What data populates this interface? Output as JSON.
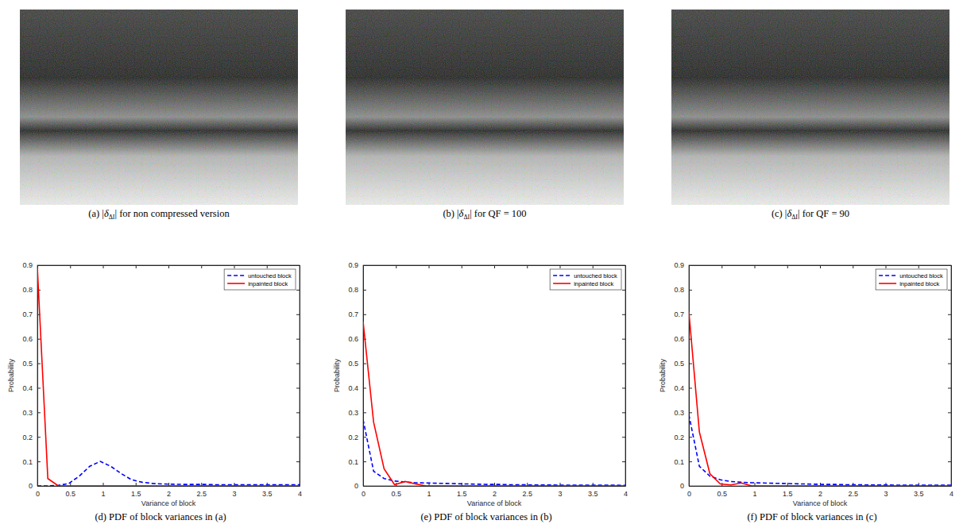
{
  "images": [
    {
      "caption_parts": [
        "(a) |",
        "δ",
        "ΔI",
        "| for non compressed version"
      ]
    },
    {
      "caption_parts": [
        "(b) |",
        "δ",
        "ΔI",
        "| for QF = 100"
      ]
    },
    {
      "caption_parts": [
        "(c) |",
        "δ",
        "ΔI",
        "| for QF = 90"
      ]
    }
  ],
  "chart_data": [
    {
      "type": "line",
      "caption": "(d) PDF of block variances in (a)",
      "x_label": "Variance of block",
      "y_label": "Probability",
      "x": [
        0,
        0.16,
        0.32,
        0.48,
        0.64,
        0.8,
        0.96,
        1.12,
        1.28,
        1.44,
        1.6,
        1.76,
        1.92,
        2.08,
        2.24,
        2.4,
        2.56,
        2.72,
        2.88,
        3.04,
        3.2,
        3.36,
        3.52,
        3.68,
        3.84,
        4
      ],
      "xlim": [
        0,
        4
      ],
      "xticks": [
        0,
        0.5,
        1,
        1.5,
        2,
        2.5,
        3,
        3.5,
        4
      ],
      "ylim": [
        0,
        0.9
      ],
      "yticks": [
        0,
        0.1,
        0.2,
        0.3,
        0.4,
        0.5,
        0.6,
        0.7,
        0.8,
        0.9
      ],
      "legend": "upper right",
      "series": [
        {
          "name": "untouched block",
          "color": "#0000ff",
          "line_style": "dashed",
          "values": [
            0,
            0,
            0.002,
            0.01,
            0.04,
            0.08,
            0.1,
            0.08,
            0.05,
            0.025,
            0.015,
            0.01,
            0.008,
            0.007,
            0.006,
            0.006,
            0.006,
            0.005,
            0.005,
            0.005,
            0.005,
            0.005,
            0.005,
            0.005,
            0.005,
            0.005
          ]
        },
        {
          "name": "inpainted block",
          "color": "#ff0000",
          "line_style": "solid",
          "values": [
            0.89,
            0.03,
            0,
            0,
            0,
            0,
            0,
            0,
            0,
            0,
            0,
            0,
            0,
            0,
            0,
            0,
            0,
            0,
            0,
            0,
            0,
            0,
            0,
            0,
            0,
            0
          ]
        }
      ]
    },
    {
      "type": "line",
      "caption": "(e) PDF of block variances in (b)",
      "x_label": "Variance of block",
      "y_label": "Probability",
      "x": [
        0,
        0.16,
        0.32,
        0.48,
        0.64,
        0.8,
        0.96,
        1.12,
        1.28,
        1.44,
        1.6,
        1.76,
        1.92,
        2.08,
        2.24,
        2.4,
        2.56,
        2.72,
        2.88,
        3.04,
        3.2,
        3.36,
        3.52,
        3.68,
        3.84,
        4
      ],
      "xlim": [
        0,
        4
      ],
      "xticks": [
        0,
        0.5,
        1,
        1.5,
        2,
        2.5,
        3,
        3.5,
        4
      ],
      "ylim": [
        0,
        0.9
      ],
      "yticks": [
        0,
        0.1,
        0.2,
        0.3,
        0.4,
        0.5,
        0.6,
        0.7,
        0.8,
        0.9
      ],
      "legend": "upper right",
      "series": [
        {
          "name": "untouched block",
          "color": "#0000ff",
          "line_style": "dashed",
          "values": [
            0.27,
            0.06,
            0.03,
            0.02,
            0.016,
            0.013,
            0.012,
            0.011,
            0.01,
            0.009,
            0.008,
            0.007,
            0.006,
            0.006,
            0.005,
            0.005,
            0.004,
            0.004,
            0.004,
            0.003,
            0.003,
            0.003,
            0.003,
            0.003,
            0.003,
            0.002
          ]
        },
        {
          "name": "inpainted block",
          "color": "#ff0000",
          "line_style": "solid",
          "values": [
            0.67,
            0.26,
            0.07,
            0.005,
            0.018,
            0.008,
            0,
            0,
            0,
            0,
            0,
            0,
            0,
            0,
            0,
            0,
            0,
            0,
            0,
            0,
            0,
            0,
            0,
            0,
            0,
            0
          ]
        }
      ]
    },
    {
      "type": "line",
      "caption": "(f) PDF of block variances in (c)",
      "x_label": "Variance of block",
      "y_label": "Probability",
      "x": [
        0,
        0.16,
        0.32,
        0.48,
        0.64,
        0.8,
        0.96,
        1.12,
        1.28,
        1.44,
        1.6,
        1.76,
        1.92,
        2.08,
        2.24,
        2.4,
        2.56,
        2.72,
        2.88,
        3.04,
        3.2,
        3.36,
        3.52,
        3.68,
        3.84,
        4
      ],
      "xlim": [
        0,
        4
      ],
      "xticks": [
        0,
        0.5,
        1,
        1.5,
        2,
        2.5,
        3,
        3.5,
        4
      ],
      "ylim": [
        0,
        0.9
      ],
      "yticks": [
        0,
        0.1,
        0.2,
        0.3,
        0.4,
        0.5,
        0.6,
        0.7,
        0.8,
        0.9
      ],
      "legend": "upper right",
      "series": [
        {
          "name": "untouched block",
          "color": "#0000ff",
          "line_style": "dashed",
          "values": [
            0.29,
            0.08,
            0.04,
            0.025,
            0.018,
            0.015,
            0.013,
            0.012,
            0.011,
            0.01,
            0.009,
            0.008,
            0.007,
            0.006,
            0.006,
            0.005,
            0.005,
            0.004,
            0.004,
            0.004,
            0.003,
            0.003,
            0.003,
            0.003,
            0.003,
            0.003
          ]
        },
        {
          "name": "inpainted block",
          "color": "#ff0000",
          "line_style": "solid",
          "values": [
            0.71,
            0.22,
            0.05,
            0.008,
            0.004,
            0.012,
            0,
            0,
            0,
            0,
            0,
            0,
            0,
            0,
            0,
            0,
            0,
            0,
            0,
            0,
            0,
            0,
            0,
            0,
            0,
            0
          ]
        }
      ]
    }
  ]
}
